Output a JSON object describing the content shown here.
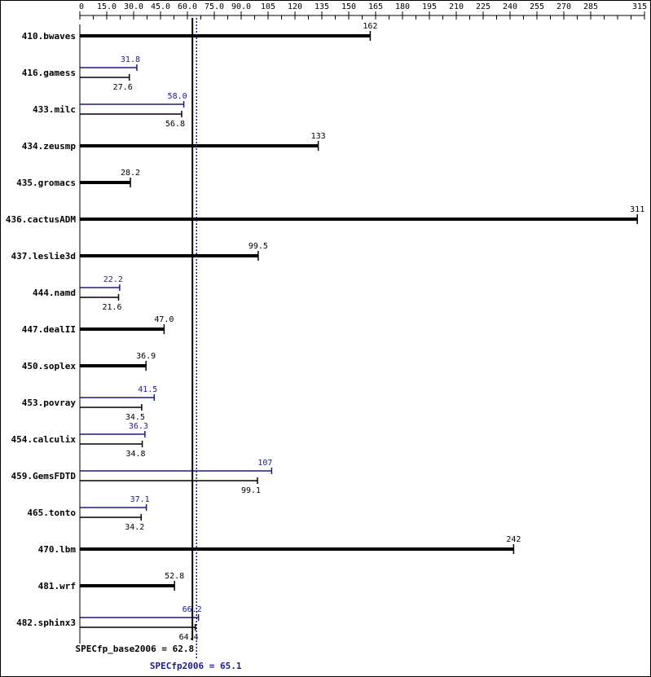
{
  "colors": {
    "base": "#000000",
    "peak": "#1a1a8c",
    "border": "#000000"
  },
  "chart_data": {
    "type": "bar",
    "orientation": "horizontal",
    "x_axis": {
      "min": 0,
      "max": 315,
      "position": "top",
      "tick_labels": [
        "0",
        "15.0",
        "30.0",
        "45.0",
        "60.0",
        "75.0",
        "90.0",
        "105",
        "120",
        "135",
        "150",
        "165",
        "180",
        "195",
        "210",
        "225",
        "240",
        "255",
        "270",
        "285",
        "315"
      ],
      "tick_values": [
        0,
        15,
        30,
        45,
        60,
        75,
        90,
        105,
        120,
        135,
        150,
        165,
        180,
        195,
        210,
        225,
        240,
        255,
        270,
        285,
        315
      ]
    },
    "grid": false,
    "benchmarks": [
      {
        "name": "410.bwaves",
        "base": 162,
        "base_label": "162",
        "peak": null,
        "peak_label": ""
      },
      {
        "name": "416.gamess",
        "base": 27.6,
        "base_label": "27.6",
        "peak": 31.8,
        "peak_label": "31.8"
      },
      {
        "name": "433.milc",
        "base": 56.8,
        "base_label": "56.8",
        "peak": 58.0,
        "peak_label": "58.0"
      },
      {
        "name": "434.zeusmp",
        "base": 133,
        "base_label": "133",
        "peak": null,
        "peak_label": ""
      },
      {
        "name": "435.gromacs",
        "base": 28.2,
        "base_label": "28.2",
        "peak": null,
        "peak_label": ""
      },
      {
        "name": "436.cactusADM",
        "base": 311,
        "base_label": "311",
        "peak": null,
        "peak_label": ""
      },
      {
        "name": "437.leslie3d",
        "base": 99.5,
        "base_label": "99.5",
        "peak": null,
        "peak_label": ""
      },
      {
        "name": "444.namd",
        "base": 21.6,
        "base_label": "21.6",
        "peak": 22.2,
        "peak_label": "22.2"
      },
      {
        "name": "447.dealII",
        "base": 47.0,
        "base_label": "47.0",
        "peak": null,
        "peak_label": ""
      },
      {
        "name": "450.soplex",
        "base": 36.9,
        "base_label": "36.9",
        "peak": null,
        "peak_label": ""
      },
      {
        "name": "453.povray",
        "base": 34.5,
        "base_label": "34.5",
        "peak": 41.5,
        "peak_label": "41.5"
      },
      {
        "name": "454.calculix",
        "base": 34.8,
        "base_label": "34.8",
        "peak": 36.3,
        "peak_label": "36.3"
      },
      {
        "name": "459.GemsFDTD",
        "base": 99.1,
        "base_label": "99.1",
        "peak": 107,
        "peak_label": "107"
      },
      {
        "name": "465.tonto",
        "base": 34.2,
        "base_label": "34.2",
        "peak": 37.1,
        "peak_label": "37.1"
      },
      {
        "name": "470.lbm",
        "base": 242,
        "base_label": "242",
        "peak": null,
        "peak_label": ""
      },
      {
        "name": "481.wrf",
        "base": 52.8,
        "base_label": "52.8",
        "peak": null,
        "peak_label": ""
      },
      {
        "name": "482.sphinx3",
        "base": 64.4,
        "base_label": "64.4",
        "peak": 66.2,
        "peak_label": "66.2"
      }
    ],
    "summary": {
      "base_value": 62.8,
      "base_label": "SPECfp_base2006 = 62.8",
      "peak_value": 65.1,
      "peak_label": "SPECfp2006 = 65.1"
    }
  }
}
